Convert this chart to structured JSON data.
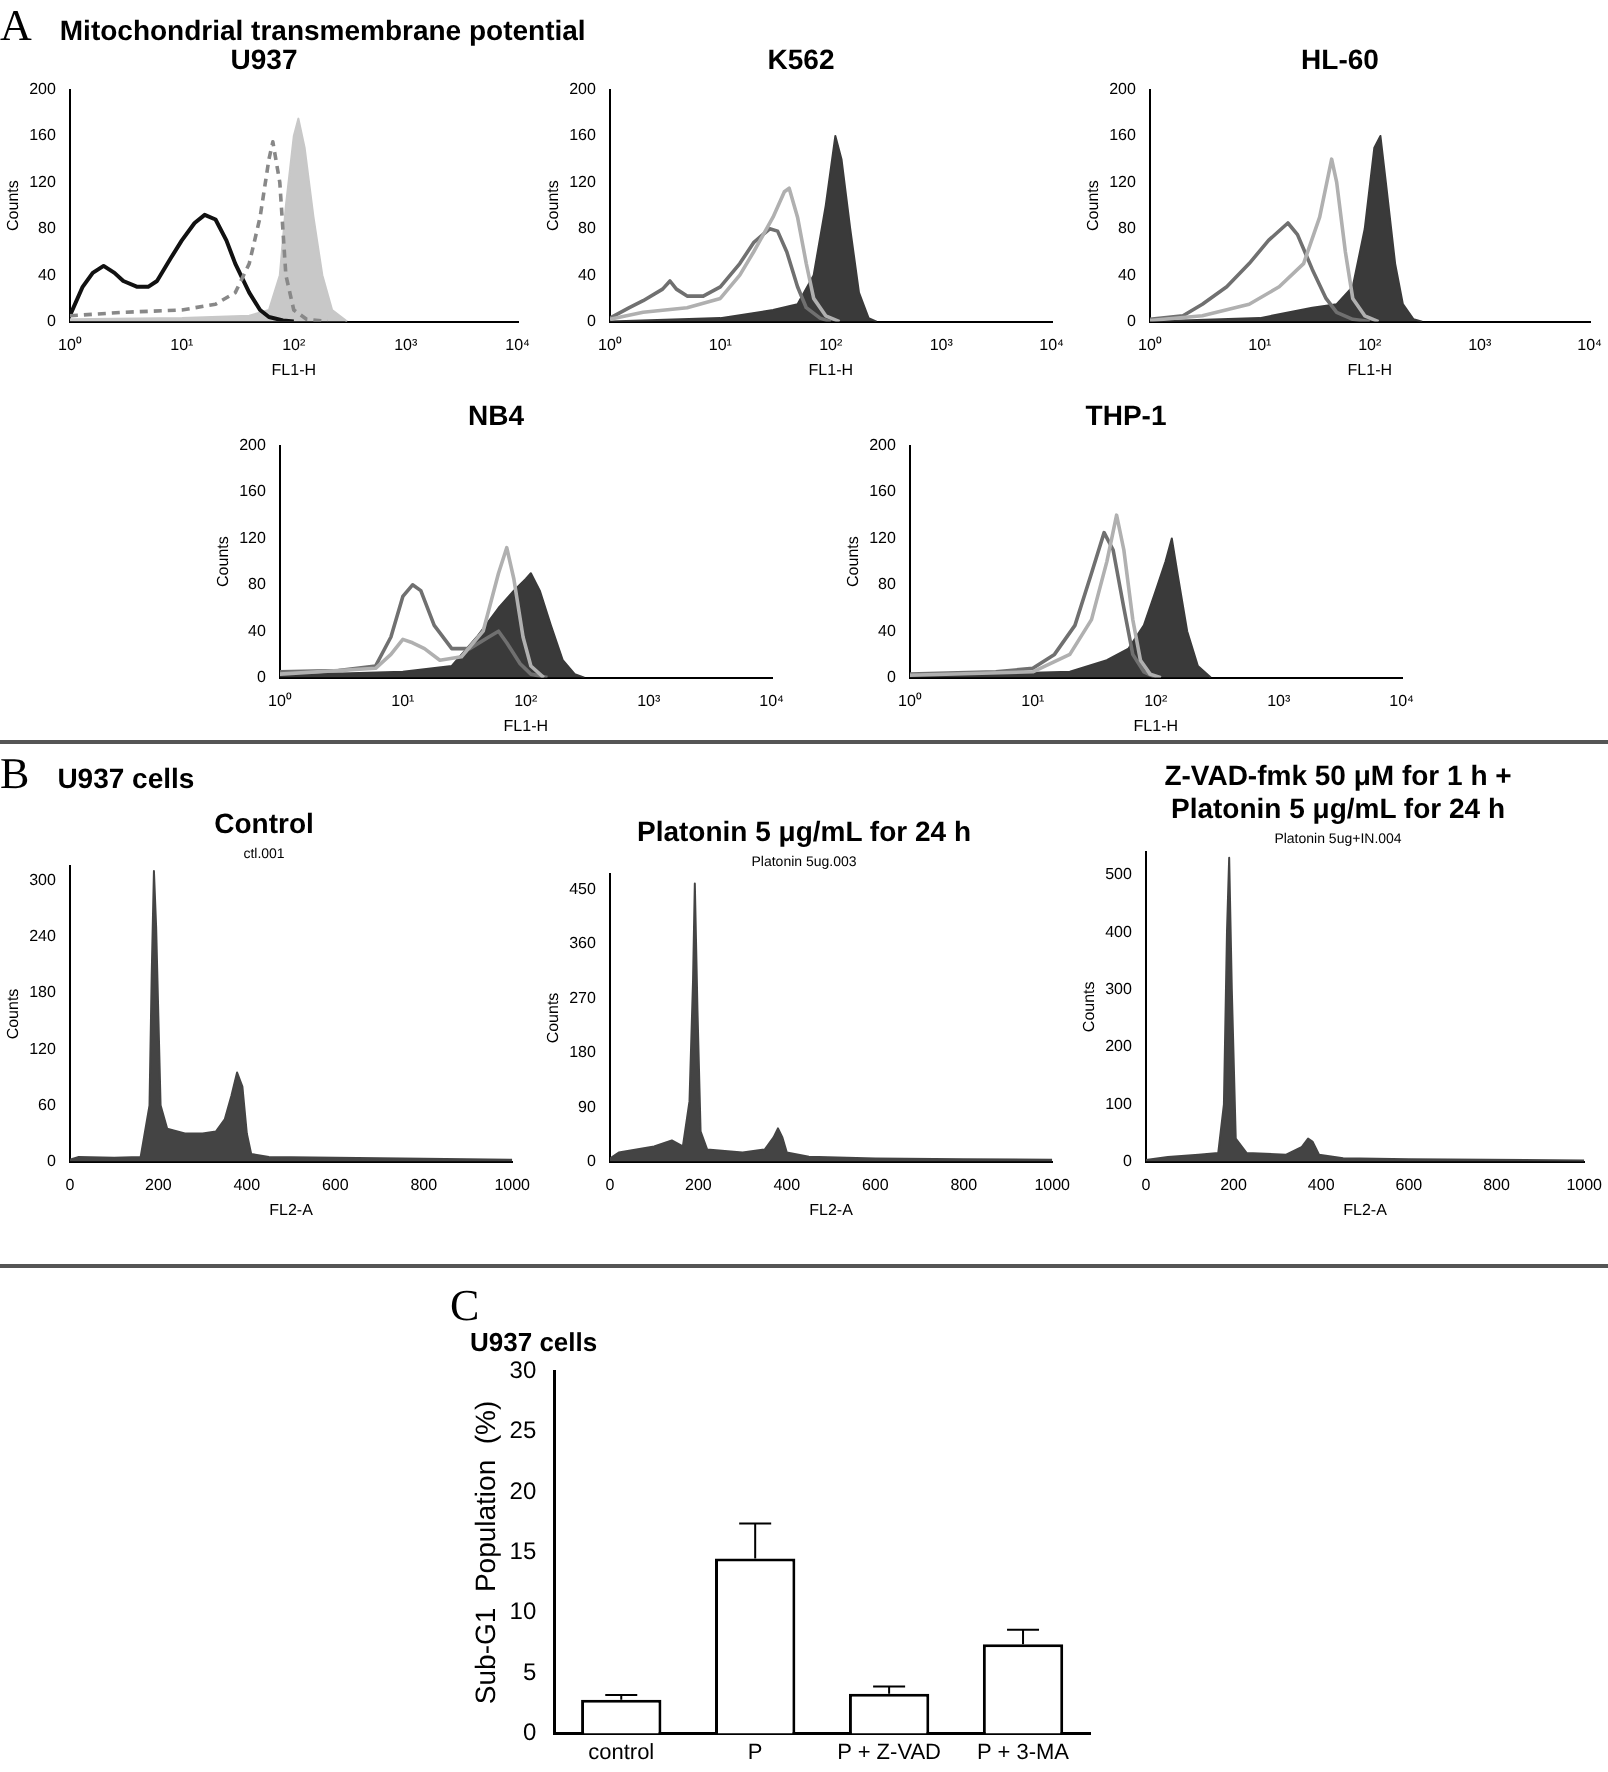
{
  "chart_data": [
    {
      "type": "area",
      "title": "U937",
      "annotations": [
        "A",
        "Mitochondrial transmembrane potential"
      ],
      "xlabel": "FL1-H",
      "ylabel": "Counts",
      "log": "x",
      "xlim": [
        1,
        10000
      ],
      "xticks": [
        {
          "value": 1,
          "label": "10⁰"
        },
        {
          "value": 10,
          "label": "10¹"
        },
        {
          "value": 100,
          "label": "10²"
        },
        {
          "value": 1000,
          "label": "10³"
        },
        {
          "value": 10000,
          "label": "10⁴"
        }
      ],
      "ylim": [
        0,
        200
      ],
      "yticks": [
        0,
        40,
        80,
        120,
        160,
        200
      ],
      "grid": false,
      "legend": false,
      "series": [
        {
          "type": "area",
          "color": "#c8c8c8",
          "x": [
            1,
            10,
            40,
            60,
            75,
            85,
            100,
            110,
            125,
            150,
            180,
            220,
            300
          ],
          "values": [
            2,
            3,
            5,
            10,
            40,
            100,
            160,
            175,
            150,
            90,
            40,
            10,
            0
          ]
        },
        {
          "type": "line",
          "line_style": "dashed",
          "color": "#888888",
          "x": [
            1,
            3,
            10,
            20,
            30,
            40,
            50,
            60,
            65,
            75,
            85,
            100,
            130,
            200
          ],
          "values": [
            5,
            8,
            10,
            15,
            25,
            50,
            90,
            140,
            155,
            120,
            40,
            10,
            2,
            0
          ]
        },
        {
          "type": "line",
          "color": "#111111",
          "x": [
            1,
            1.3,
            1.6,
            2,
            2.5,
            3,
            4,
            5,
            6,
            8,
            10,
            13,
            16,
            20,
            25,
            30,
            40,
            50,
            60,
            80,
            100
          ],
          "values": [
            5,
            30,
            42,
            48,
            42,
            35,
            30,
            30,
            35,
            55,
            70,
            85,
            92,
            88,
            70,
            50,
            25,
            10,
            4,
            1,
            0
          ]
        }
      ]
    },
    {
      "type": "area",
      "title": "K562",
      "xlabel": "FL1-H",
      "ylabel": "Counts",
      "log": "x",
      "xlim": [
        1,
        10000
      ],
      "xticks": [
        {
          "value": 1,
          "label": "10⁰"
        },
        {
          "value": 10,
          "label": "10¹"
        },
        {
          "value": 100,
          "label": "10²"
        },
        {
          "value": 1000,
          "label": "10³"
        },
        {
          "value": 10000,
          "label": "10⁴"
        }
      ],
      "ylim": [
        0,
        200
      ],
      "yticks": [
        0,
        40,
        80,
        120,
        160,
        200
      ],
      "grid": false,
      "legend": false,
      "series": [
        {
          "type": "area",
          "color": "#3a3a3a",
          "x": [
            1,
            10,
            30,
            50,
            70,
            90,
            110,
            125,
            150,
            180,
            220,
            260
          ],
          "values": [
            0,
            3,
            10,
            15,
            40,
            100,
            160,
            140,
            80,
            25,
            3,
            0
          ]
        },
        {
          "type": "line",
          "color": "#b0b0b0",
          "x": [
            1,
            2,
            5,
            10,
            15,
            20,
            30,
            38,
            42,
            50,
            60,
            70,
            90,
            120
          ],
          "values": [
            2,
            8,
            12,
            20,
            40,
            60,
            90,
            112,
            115,
            90,
            50,
            20,
            5,
            0
          ]
        },
        {
          "type": "line",
          "color": "#707070",
          "x": [
            1,
            1.5,
            2,
            3,
            3.5,
            4,
            5,
            7,
            10,
            15,
            20,
            28,
            33,
            40,
            50,
            60,
            80,
            100
          ],
          "values": [
            3,
            12,
            18,
            28,
            35,
            28,
            22,
            22,
            30,
            50,
            68,
            80,
            78,
            60,
            30,
            12,
            3,
            0
          ]
        }
      ]
    },
    {
      "type": "area",
      "title": "HL-60",
      "xlabel": "FL1-H",
      "ylabel": "Counts",
      "log": "x",
      "xlim": [
        1,
        10000
      ],
      "xticks": [
        {
          "value": 1,
          "label": "10⁰"
        },
        {
          "value": 10,
          "label": "10¹"
        },
        {
          "value": 100,
          "label": "10²"
        },
        {
          "value": 1000,
          "label": "10³"
        },
        {
          "value": 10000,
          "label": "10⁴"
        }
      ],
      "ylim": [
        0,
        200
      ],
      "yticks": [
        0,
        40,
        80,
        120,
        160,
        200
      ],
      "grid": false,
      "legend": false,
      "series": [
        {
          "type": "area",
          "color": "#3a3a3a",
          "x": [
            1,
            10,
            30,
            50,
            70,
            90,
            110,
            125,
            140,
            170,
            200,
            250,
            300
          ],
          "values": [
            0,
            3,
            12,
            15,
            30,
            80,
            150,
            160,
            120,
            50,
            15,
            2,
            0
          ]
        },
        {
          "type": "line",
          "color": "#b0b0b0",
          "x": [
            1,
            3,
            8,
            15,
            25,
            35,
            45,
            50,
            60,
            70,
            90,
            120
          ],
          "values": [
            1,
            5,
            15,
            30,
            50,
            90,
            140,
            120,
            60,
            20,
            5,
            0
          ]
        },
        {
          "type": "line",
          "color": "#707070",
          "x": [
            1,
            2,
            3,
            5,
            8,
            12,
            18,
            22,
            30,
            40,
            50,
            70,
            100
          ],
          "values": [
            2,
            5,
            15,
            30,
            50,
            70,
            85,
            75,
            45,
            20,
            8,
            2,
            0
          ]
        }
      ]
    },
    {
      "type": "area",
      "title": "NB4",
      "xlabel": "FL1-H",
      "ylabel": "Counts",
      "log": "x",
      "xlim": [
        1,
        10000
      ],
      "xticks": [
        {
          "value": 1,
          "label": "10⁰"
        },
        {
          "value": 10,
          "label": "10¹"
        },
        {
          "value": 100,
          "label": "10²"
        },
        {
          "value": 1000,
          "label": "10³"
        },
        {
          "value": 10000,
          "label": "10⁴"
        }
      ],
      "ylim": [
        0,
        200
      ],
      "yticks": [
        0,
        40,
        80,
        120,
        160,
        200
      ],
      "grid": false,
      "legend": false,
      "series": [
        {
          "type": "area",
          "color": "#3a3a3a",
          "x": [
            1,
            10,
            25,
            40,
            60,
            80,
            100,
            110,
            130,
            160,
            200,
            250,
            300
          ],
          "values": [
            2,
            5,
            10,
            35,
            60,
            75,
            85,
            90,
            75,
            45,
            15,
            3,
            0
          ]
        },
        {
          "type": "line",
          "color": "#b0b0b0",
          "x": [
            1,
            6,
            8,
            10,
            12,
            15,
            20,
            30,
            45,
            60,
            70,
            80,
            95,
            110,
            140
          ],
          "values": [
            3,
            8,
            20,
            33,
            30,
            25,
            15,
            18,
            40,
            90,
            112,
            85,
            35,
            10,
            0
          ]
        },
        {
          "type": "line",
          "color": "#707070",
          "x": [
            1,
            3,
            6,
            8,
            10,
            12,
            14,
            18,
            25,
            35,
            50,
            60,
            70,
            90,
            110,
            150
          ],
          "values": [
            5,
            6,
            10,
            35,
            70,
            80,
            75,
            45,
            25,
            25,
            35,
            40,
            30,
            12,
            3,
            0
          ]
        }
      ]
    },
    {
      "type": "area",
      "title": "THP-1",
      "xlabel": "FL1-H",
      "ylabel": "Counts",
      "log": "x",
      "xlim": [
        1,
        10000
      ],
      "xticks": [
        {
          "value": 1,
          "label": "10⁰"
        },
        {
          "value": 10,
          "label": "10¹"
        },
        {
          "value": 100,
          "label": "10²"
        },
        {
          "value": 1000,
          "label": "10³"
        },
        {
          "value": 10000,
          "label": "10⁴"
        }
      ],
      "ylim": [
        0,
        200
      ],
      "yticks": [
        0,
        40,
        80,
        120,
        160,
        200
      ],
      "grid": false,
      "legend": false,
      "series": [
        {
          "type": "area",
          "color": "#3a3a3a",
          "x": [
            1,
            20,
            40,
            60,
            80,
            100,
            120,
            135,
            150,
            180,
            220,
            280
          ],
          "values": [
            1,
            5,
            15,
            25,
            45,
            75,
            100,
            120,
            90,
            40,
            10,
            0
          ]
        },
        {
          "type": "line",
          "color": "#b0b0b0",
          "x": [
            1,
            10,
            20,
            30,
            40,
            48,
            55,
            65,
            75,
            90,
            110
          ],
          "values": [
            2,
            5,
            20,
            50,
            100,
            140,
            110,
            50,
            15,
            3,
            0
          ]
        },
        {
          "type": "line",
          "color": "#707070",
          "x": [
            1,
            5,
            10,
            15,
            22,
            30,
            38,
            45,
            55,
            65,
            80,
            100
          ],
          "values": [
            3,
            5,
            8,
            20,
            45,
            90,
            125,
            110,
            60,
            20,
            5,
            0
          ]
        }
      ]
    },
    {
      "type": "area",
      "title": "Control",
      "subtitle": "ctl.001",
      "annotations": [
        "B",
        "U937 cells"
      ],
      "xlabel": "FL2-A",
      "ylabel": "Counts",
      "xlim": [
        0,
        1000
      ],
      "xticks": [
        0,
        200,
        400,
        600,
        800,
        1000
      ],
      "ylim": [
        0,
        315
      ],
      "yticks": [
        0,
        60,
        120,
        180,
        240,
        300
      ],
      "grid": false,
      "legend": false,
      "series": [
        {
          "type": "area",
          "color": "#444444",
          "x": [
            0,
            20,
            100,
            160,
            180,
            185,
            190,
            195,
            205,
            220,
            260,
            300,
            330,
            350,
            365,
            378,
            390,
            400,
            410,
            450,
            600,
            800,
            1000
          ],
          "values": [
            2,
            5,
            4,
            5,
            60,
            200,
            310,
            250,
            60,
            35,
            30,
            30,
            32,
            45,
            70,
            95,
            80,
            30,
            8,
            5,
            4,
            3,
            2
          ]
        }
      ]
    },
    {
      "type": "area",
      "title": "Platonin 5 μg/mL for 24 h",
      "subtitle": "Platonin 5ug.003",
      "xlabel": "FL2-A",
      "ylabel": "Counts",
      "xlim": [
        0,
        1000
      ],
      "xticks": [
        0,
        200,
        400,
        600,
        800,
        1000
      ],
      "ylim": [
        0,
        475
      ],
      "yticks": [
        0,
        90,
        180,
        270,
        360,
        450
      ],
      "grid": false,
      "legend": false,
      "series": [
        {
          "type": "area",
          "color": "#444444",
          "x": [
            0,
            20,
            60,
            100,
            140,
            165,
            180,
            188,
            192,
            198,
            205,
            220,
            300,
            350,
            370,
            380,
            390,
            400,
            450,
            600,
            800,
            1000
          ],
          "values": [
            5,
            15,
            20,
            25,
            35,
            25,
            100,
            300,
            460,
            250,
            50,
            20,
            15,
            20,
            40,
            55,
            40,
            15,
            8,
            5,
            4,
            3
          ]
        }
      ]
    },
    {
      "type": "area",
      "title": "Z-VAD-fmk 50 μM for 1 h +\nPlatonin 5 μg/mL for 24 h",
      "subtitle": "Platonin 5ug+IN.004",
      "xlabel": "FL2-A",
      "ylabel": "Counts",
      "xlim": [
        0,
        1000
      ],
      "xticks": [
        0,
        200,
        400,
        600,
        800,
        1000
      ],
      "ylim": [
        0,
        540
      ],
      "yticks": [
        0,
        100,
        200,
        300,
        400,
        500
      ],
      "grid": false,
      "legend": false,
      "series": [
        {
          "type": "area",
          "color": "#444444",
          "x": [
            0,
            50,
            120,
            165,
            178,
            185,
            190,
            196,
            205,
            230,
            320,
            355,
            370,
            380,
            395,
            450,
            600,
            1000
          ],
          "values": [
            3,
            8,
            12,
            15,
            100,
            400,
            530,
            300,
            40,
            15,
            12,
            25,
            40,
            35,
            12,
            6,
            4,
            2
          ]
        }
      ]
    },
    {
      "type": "bar",
      "title": "U937 cells",
      "annotations": [
        "C"
      ],
      "ylabel": "Sub-G1  Population  (%)",
      "categories": [
        "control",
        "P",
        "P + Z-VAD",
        "P + 3-MA"
      ],
      "values": [
        2.8,
        14.5,
        3.3,
        7.4
      ],
      "errors": [
        [
          2.8,
          3.2
        ],
        [
          14.5,
          17.4
        ],
        [
          3.3,
          3.9
        ],
        [
          7.4,
          8.6
        ]
      ],
      "color": "#ffffff",
      "ylim": [
        0,
        30
      ],
      "yticks": [
        0,
        5,
        10,
        15,
        20,
        25,
        30
      ],
      "grid": false,
      "legend": false
    }
  ]
}
